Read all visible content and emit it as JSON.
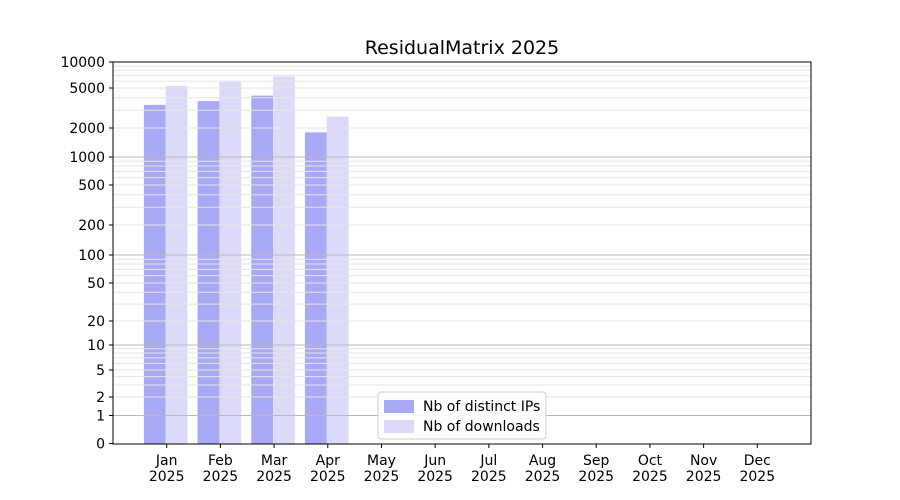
{
  "title": "ResidualMatrix 2025",
  "chart_data": {
    "type": "bar",
    "title": "ResidualMatrix 2025",
    "categories": [
      "Jan",
      "Feb",
      "Mar",
      "Apr",
      "May",
      "Jun",
      "Jul",
      "Aug",
      "Sep",
      "Oct",
      "Nov",
      "Dec"
    ],
    "category_year": "2025",
    "series": [
      {
        "name": "Nb of distinct IPs",
        "color": "#a8a8f5",
        "values": [
          3400,
          3700,
          4200,
          1800,
          null,
          null,
          null,
          null,
          null,
          null,
          null,
          null
        ]
      },
      {
        "name": "Nb of downloads",
        "color": "#dbdbf9",
        "values": [
          5300,
          5900,
          6800,
          2600,
          null,
          null,
          null,
          null,
          null,
          null,
          null,
          null
        ]
      }
    ],
    "yscale": "symlog",
    "ylim": [
      0,
      10000
    ],
    "yticks": [
      0,
      1,
      2,
      5,
      10,
      20,
      50,
      100,
      200,
      500,
      1000,
      2000,
      5000,
      10000
    ],
    "xlabel": "",
    "ylabel": "",
    "grid": "both",
    "legend_position": "lower center"
  },
  "colors": {
    "bar_distinct_ips": "#a8a8f5",
    "bar_downloads": "#dbdbf9",
    "grid_major": "#b8b8b8",
    "grid_minor": "#e6e6e6",
    "axis": "#000000",
    "background": "#ffffff",
    "legend_border": "#cccccc"
  }
}
